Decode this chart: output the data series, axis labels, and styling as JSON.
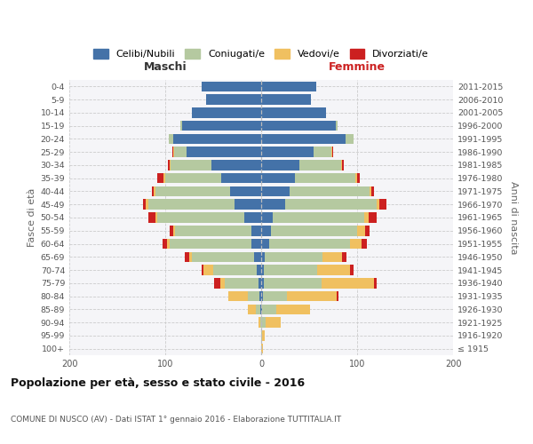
{
  "age_groups": [
    "100+",
    "95-99",
    "90-94",
    "85-89",
    "80-84",
    "75-79",
    "70-74",
    "65-69",
    "60-64",
    "55-59",
    "50-54",
    "45-49",
    "40-44",
    "35-39",
    "30-34",
    "25-29",
    "20-24",
    "15-19",
    "10-14",
    "5-9",
    "0-4"
  ],
  "birth_years": [
    "≤ 1915",
    "1916-1920",
    "1921-1925",
    "1926-1930",
    "1931-1935",
    "1936-1940",
    "1941-1945",
    "1946-1950",
    "1951-1955",
    "1956-1960",
    "1961-1965",
    "1966-1970",
    "1971-1975",
    "1976-1980",
    "1981-1985",
    "1986-1990",
    "1991-1995",
    "1996-2000",
    "2001-2005",
    "2006-2010",
    "2011-2015"
  ],
  "colors": {
    "celibi": "#4472a8",
    "coniugati": "#b5c9a0",
    "vedovi": "#f0c060",
    "divorziati": "#cc2020"
  },
  "maschi": {
    "celibi": [
      0,
      0,
      0,
      1,
      2,
      3,
      5,
      7,
      10,
      10,
      18,
      28,
      32,
      42,
      52,
      78,
      92,
      82,
      72,
      57,
      62
    ],
    "coniugati": [
      0,
      0,
      1,
      5,
      12,
      35,
      45,
      65,
      85,
      80,
      90,
      90,
      78,
      58,
      42,
      13,
      4,
      2,
      0,
      0,
      0
    ],
    "vedovi": [
      0,
      0,
      2,
      8,
      20,
      5,
      10,
      3,
      3,
      2,
      2,
      2,
      2,
      2,
      1,
      1,
      0,
      0,
      0,
      0,
      0
    ],
    "divorziati": [
      0,
      0,
      0,
      0,
      0,
      6,
      2,
      5,
      5,
      3,
      8,
      3,
      2,
      6,
      2,
      1,
      0,
      0,
      0,
      0,
      0
    ]
  },
  "femmine": {
    "celibi": [
      0,
      0,
      0,
      1,
      2,
      3,
      3,
      4,
      8,
      10,
      12,
      25,
      30,
      35,
      40,
      55,
      88,
      78,
      68,
      52,
      57
    ],
    "coniugati": [
      0,
      1,
      5,
      15,
      25,
      60,
      55,
      60,
      85,
      90,
      95,
      95,
      83,
      63,
      43,
      18,
      8,
      2,
      0,
      0,
      0
    ],
    "vedovi": [
      2,
      3,
      15,
      35,
      52,
      55,
      35,
      20,
      12,
      8,
      5,
      3,
      2,
      2,
      1,
      1,
      0,
      0,
      0,
      0,
      0
    ],
    "divorziati": [
      0,
      0,
      0,
      0,
      2,
      2,
      3,
      5,
      5,
      5,
      8,
      8,
      3,
      3,
      2,
      1,
      0,
      0,
      0,
      0,
      0
    ]
  },
  "xlim": 200,
  "title": "Popolazione per età, sesso e stato civile - 2016",
  "subtitle": "COMUNE DI NUSCO (AV) - Dati ISTAT 1° gennaio 2016 - Elaborazione TUTTITALIA.IT",
  "ylabel_left": "Fasce di età",
  "ylabel_right": "Anni di nascita",
  "xlabel_maschi": "Maschi",
  "xlabel_femmine": "Femmine",
  "legend_labels": [
    "Celibi/Nubili",
    "Coniugati/e",
    "Vedovi/e",
    "Divorziati/e"
  ]
}
